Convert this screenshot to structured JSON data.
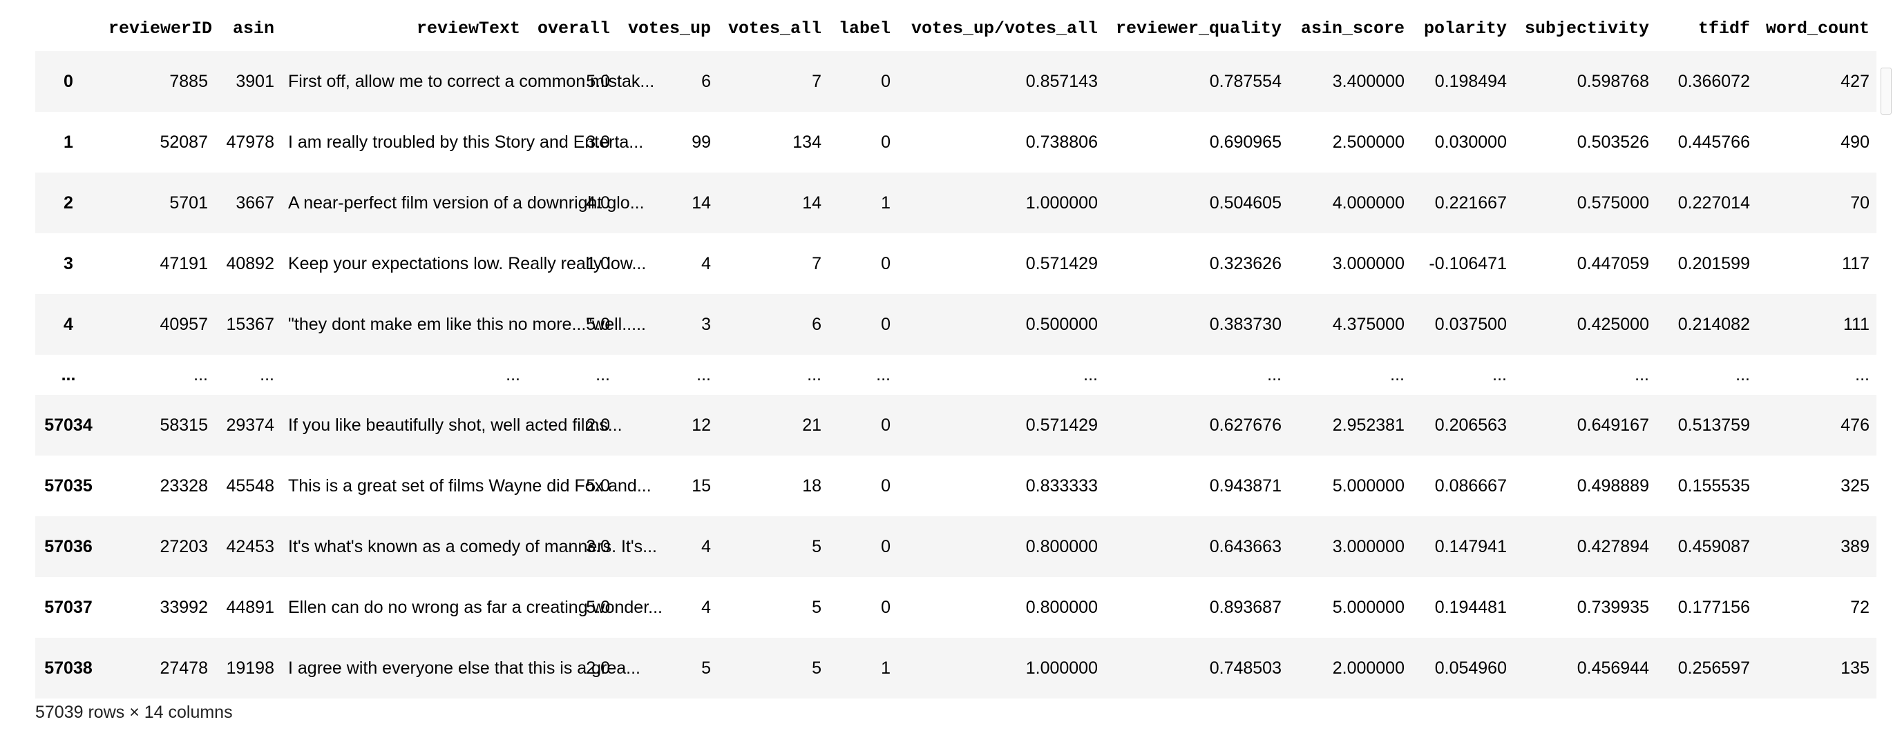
{
  "columns": [
    "",
    "reviewerID",
    "asin",
    "reviewText",
    "overall",
    "votes_up",
    "votes_all",
    "label",
    "votes_up/votes_all",
    "reviewer_quality",
    "asin_score",
    "polarity",
    "subjectivity",
    "tfidf",
    "word_count"
  ],
  "rows": [
    [
      "0",
      "7885",
      "3901",
      "First off, allow me to correct a common mistak...",
      "5.0",
      "6",
      "7",
      "0",
      "0.857143",
      "0.787554",
      "3.400000",
      "0.198494",
      "0.598768",
      "0.366072",
      "427"
    ],
    [
      "1",
      "52087",
      "47978",
      "I am really troubled by this Story and Enterta...",
      "3.0",
      "99",
      "134",
      "0",
      "0.738806",
      "0.690965",
      "2.500000",
      "0.030000",
      "0.503526",
      "0.445766",
      "490"
    ],
    [
      "2",
      "5701",
      "3667",
      "A near-perfect film version of a downright glo...",
      "4.0",
      "14",
      "14",
      "1",
      "1.000000",
      "0.504605",
      "4.000000",
      "0.221667",
      "0.575000",
      "0.227014",
      "70"
    ],
    [
      "3",
      "47191",
      "40892",
      "Keep your expectations low. Really really low...",
      "1.0",
      "4",
      "7",
      "0",
      "0.571429",
      "0.323626",
      "3.000000",
      "-0.106471",
      "0.447059",
      "0.201599",
      "117"
    ],
    [
      "4",
      "40957",
      "15367",
      "\"they dont make em like this no more...\"well.....",
      "5.0",
      "3",
      "6",
      "0",
      "0.500000",
      "0.383730",
      "4.375000",
      "0.037500",
      "0.425000",
      "0.214082",
      "111"
    ],
    [
      "...",
      "...",
      "...",
      "...",
      "...",
      "...",
      "...",
      "...",
      "...",
      "...",
      "...",
      "...",
      "...",
      "...",
      "..."
    ],
    [
      "57034",
      "58315",
      "29374",
      "If you like beautifully shot, well acted films...",
      "2.0",
      "12",
      "21",
      "0",
      "0.571429",
      "0.627676",
      "2.952381",
      "0.206563",
      "0.649167",
      "0.513759",
      "476"
    ],
    [
      "57035",
      "23328",
      "45548",
      "This is a great set of films Wayne did Fox and...",
      "5.0",
      "15",
      "18",
      "0",
      "0.833333",
      "0.943871",
      "5.000000",
      "0.086667",
      "0.498889",
      "0.155535",
      "325"
    ],
    [
      "57036",
      "27203",
      "42453",
      "It's what's known as a comedy of manners. It's...",
      "3.0",
      "4",
      "5",
      "0",
      "0.800000",
      "0.643663",
      "3.000000",
      "0.147941",
      "0.427894",
      "0.459087",
      "389"
    ],
    [
      "57037",
      "33992",
      "44891",
      "Ellen can do no wrong as far a creating wonder...",
      "5.0",
      "4",
      "5",
      "0",
      "0.800000",
      "0.893687",
      "5.000000",
      "0.194481",
      "0.739935",
      "0.177156",
      "72"
    ],
    [
      "57038",
      "27478",
      "19198",
      "I agree with everyone else that this is a grea...",
      "2.0",
      "5",
      "5",
      "1",
      "1.000000",
      "0.748503",
      "2.000000",
      "0.054960",
      "0.456944",
      "0.256597",
      "135"
    ]
  ],
  "shape_text": "57039 rows × 14 columns"
}
